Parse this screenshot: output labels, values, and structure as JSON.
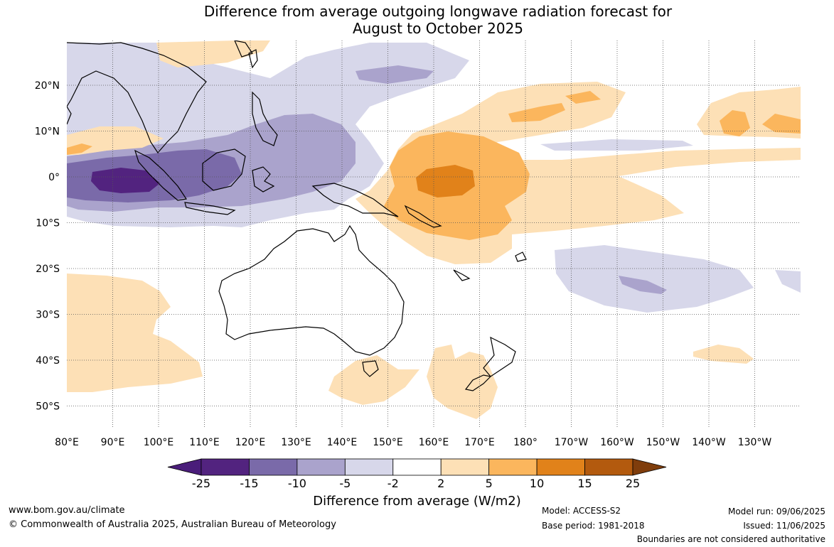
{
  "title": {
    "line1": "Difference from average outgoing longwave radiation forecast for",
    "line2": "August to October 2025"
  },
  "axes": {
    "lat_labels": [
      "20°N",
      "10°N",
      "0°",
      "10°S",
      "20°S",
      "30°S",
      "40°S",
      "50°S"
    ],
    "lon_labels": [
      "80°E",
      "90°E",
      "100°E",
      "110°E",
      "120°E",
      "130°E",
      "140°E",
      "150°E",
      "160°E",
      "170°E",
      "180°",
      "170°W",
      "160°W",
      "150°W",
      "140°W",
      "130°W"
    ]
  },
  "colorbar": {
    "ticks": [
      "-25",
      "-15",
      "-10",
      "-5",
      "-2",
      "2",
      "5",
      "10",
      "15",
      "25"
    ],
    "colors": [
      "#4a1d7a",
      "#52237f",
      "#7a6aa9",
      "#aaa3cc",
      "#d7d7ea",
      "#ffffff",
      "#fde0b6",
      "#fbb65d",
      "#e1821a",
      "#b35a0e",
      "#7f3d0c"
    ],
    "label": "Difference from average (W/m2)"
  },
  "palette": {
    "purple_strong": "#52237f",
    "purple_mid": "#7a6aa9",
    "purple_light": "#aaa3cc",
    "purple_pale": "#d7d7ea",
    "orange_pale": "#fde0b6",
    "orange_light": "#fbb65d",
    "orange_mid": "#e1821a",
    "land_outline": "#000000",
    "grid": "#666666"
  },
  "footer": {
    "website": "www.bom.gov.au/climate",
    "copyright": "© Commonwealth of Australia 2025, Australian Bureau of Meteorology",
    "model": "Model: ACCESS-S2",
    "base_period": "Base period: 1981-2018",
    "model_run": "Model run: 09/06/2025",
    "issued": "Issued: 11/06/2025",
    "disclaimer": "Boundaries are not considered authoritative"
  }
}
